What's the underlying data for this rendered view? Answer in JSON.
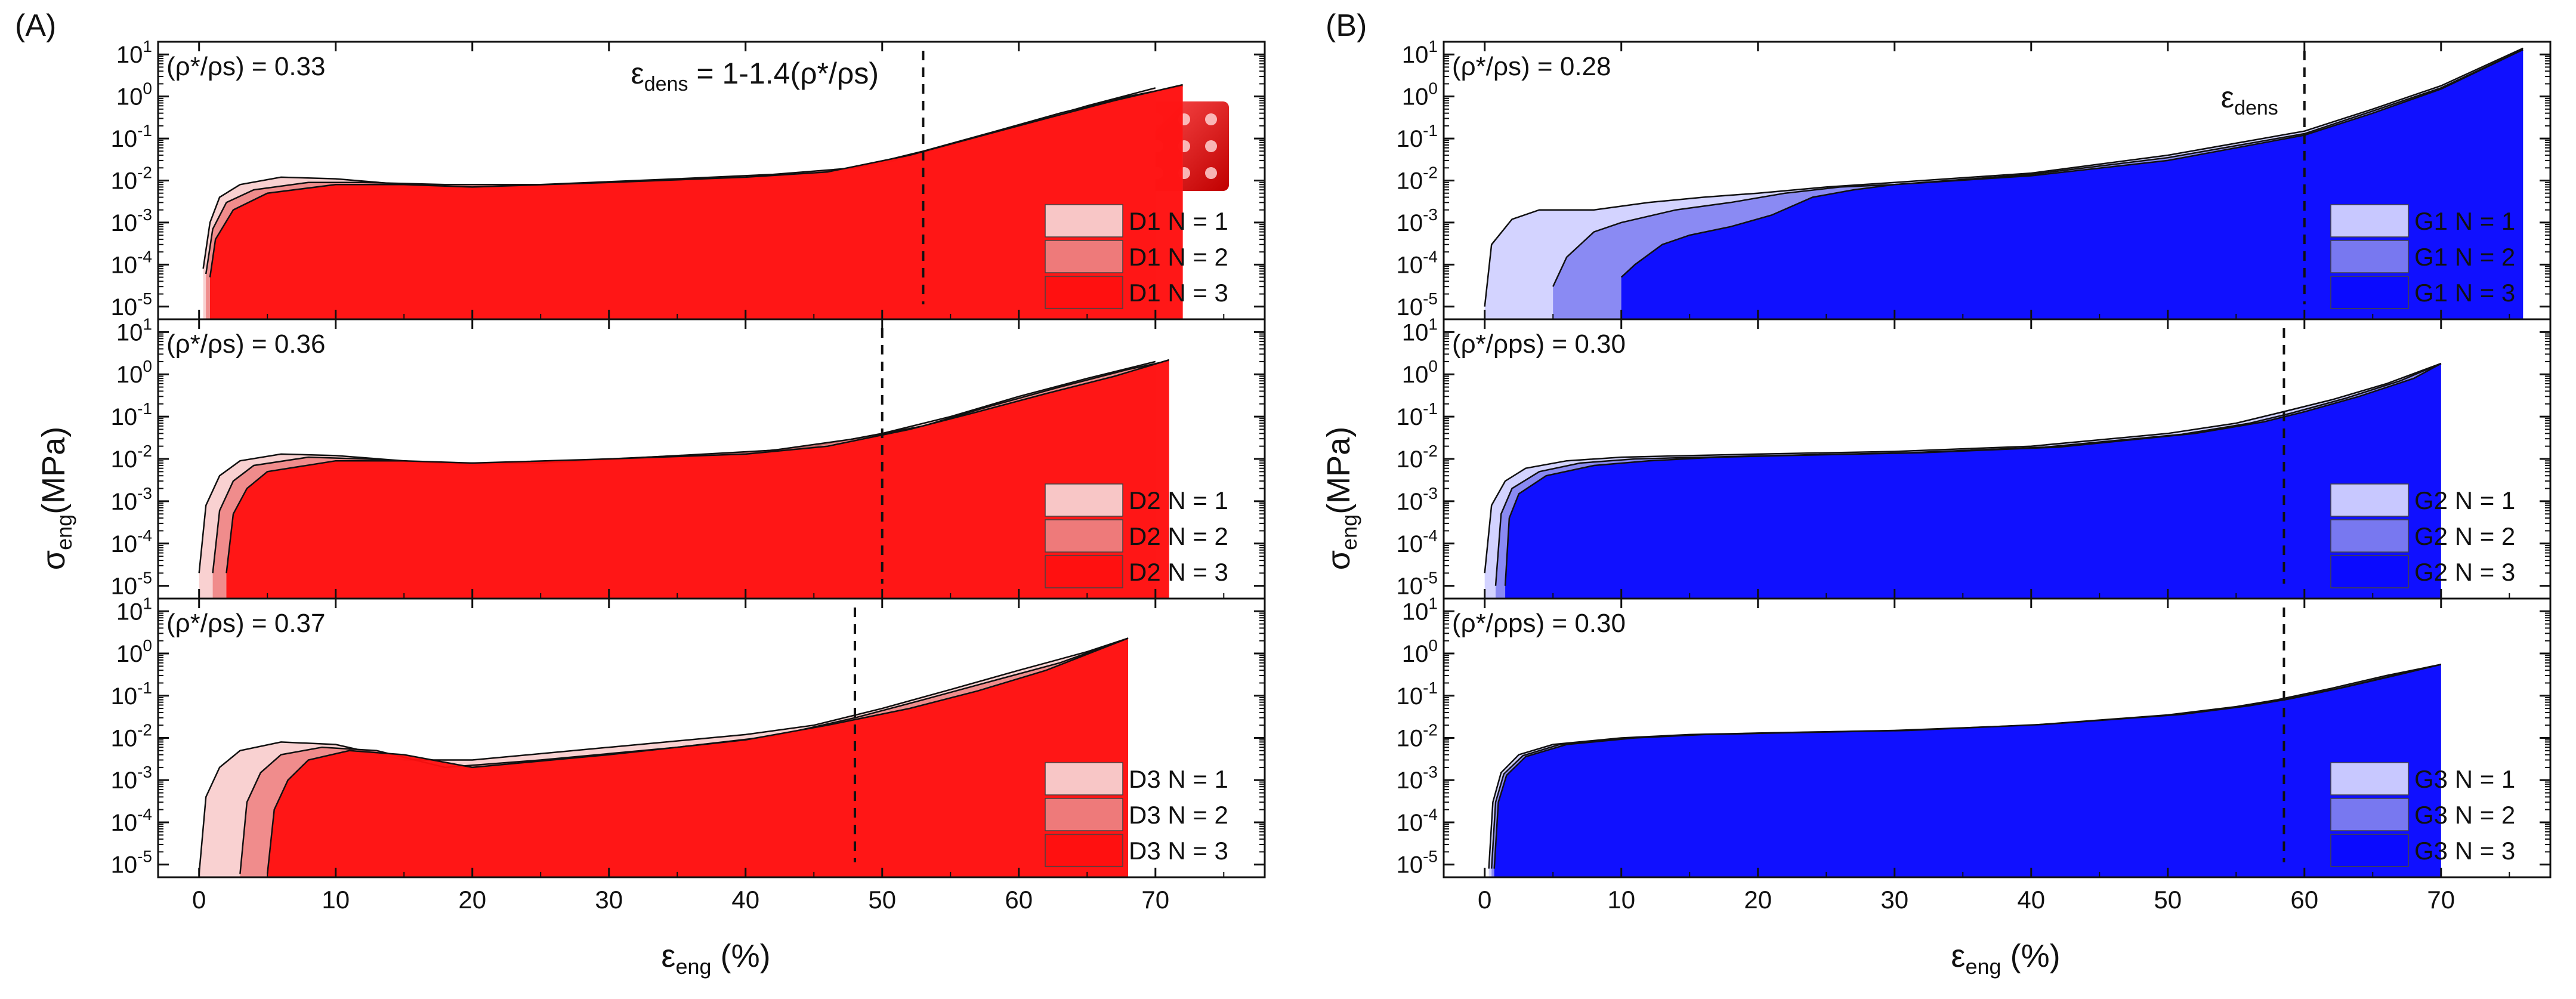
{
  "panel_labels": {
    "A": "(A)",
    "B": "(B)"
  },
  "axes": {
    "x_label_main": "ε",
    "x_label_sub": "eng",
    "x_label_unit": " (%)",
    "y_label_main": "σ",
    "y_label_sub": "eng",
    "y_label_unit": "(MPa)",
    "x_ticks": [
      "0",
      "10",
      "20",
      "30",
      "40",
      "50",
      "60",
      "70"
    ],
    "y_tick_exponents": [
      "-5",
      "-4",
      "-3",
      "-2",
      "-1",
      "0",
      "1"
    ]
  },
  "chart_data": [
    {
      "type": "area",
      "panel": "A",
      "density_label": "(ρ*/ρs) = 0.33",
      "annotation_main": "ε",
      "annotation_sub": "dens",
      "annotation_tail": " = 1-1.4(ρ*/ρs)",
      "densification_strain": 53,
      "y_scale": "log",
      "xlim": [
        -3,
        78
      ],
      "ylim": [
        5e-06,
        20
      ],
      "colors": [
        "#f8c6c6",
        "#ee7a7a",
        "#ff1010"
      ],
      "series": [
        {
          "name": "D1 N = 1",
          "x": [
            0.3,
            0.8,
            1.5,
            3,
            6,
            10,
            15,
            20,
            30,
            40,
            45,
            50,
            55,
            60,
            65,
            70
          ],
          "y": [
            8e-05,
            0.001,
            0.004,
            0.008,
            0.012,
            0.011,
            0.008,
            0.007,
            0.009,
            0.012,
            0.015,
            0.025,
            0.07,
            0.2,
            0.6,
            1.6
          ]
        },
        {
          "name": "D1 N = 2",
          "x": [
            0.5,
            1,
            2,
            4,
            8,
            12,
            18,
            25,
            35,
            42,
            48,
            53,
            58,
            63,
            68,
            72
          ],
          "y": [
            6e-05,
            0.0007,
            0.003,
            0.006,
            0.009,
            0.009,
            0.008,
            0.008,
            0.011,
            0.014,
            0.02,
            0.05,
            0.14,
            0.4,
            1.0,
            1.8
          ]
        },
        {
          "name": "D1 N = 3",
          "x": [
            0.8,
            1.2,
            2.5,
            5,
            10,
            15,
            20,
            30,
            40,
            46,
            52,
            57,
            62,
            67,
            72
          ],
          "y": [
            5e-05,
            0.0004,
            0.002,
            0.005,
            0.008,
            0.008,
            0.007,
            0.009,
            0.012,
            0.016,
            0.04,
            0.11,
            0.3,
            0.8,
            1.9
          ]
        }
      ]
    },
    {
      "type": "area",
      "panel": "A",
      "density_label": "(ρ*/ρs) = 0.36",
      "densification_strain": 50,
      "y_scale": "log",
      "xlim": [
        -3,
        78
      ],
      "ylim": [
        5e-06,
        20
      ],
      "colors": [
        "#f8c6c6",
        "#ee7a7a",
        "#ff1010"
      ],
      "series": [
        {
          "name": "D2 N = 1",
          "x": [
            0,
            0.5,
            1.5,
            3,
            6,
            10,
            15,
            20,
            30,
            40,
            45,
            50,
            55,
            60,
            65,
            70
          ],
          "y": [
            2e-05,
            0.0008,
            0.004,
            0.009,
            0.013,
            0.012,
            0.009,
            0.007,
            0.01,
            0.014,
            0.02,
            0.04,
            0.1,
            0.3,
            0.8,
            2.0
          ]
        },
        {
          "name": "D2 N = 2",
          "x": [
            1,
            1.5,
            2.5,
            4,
            8,
            12,
            18,
            25,
            35,
            42,
            48,
            53,
            58,
            63,
            68,
            71
          ],
          "y": [
            2e-05,
            0.0006,
            0.003,
            0.007,
            0.011,
            0.01,
            0.008,
            0.008,
            0.012,
            0.016,
            0.03,
            0.06,
            0.18,
            0.5,
            1.3,
            2.1
          ]
        },
        {
          "name": "D2 N = 3",
          "x": [
            2,
            2.5,
            3.5,
            5,
            10,
            15,
            20,
            30,
            40,
            46,
            52,
            57,
            62,
            67,
            71
          ],
          "y": [
            2e-05,
            0.0005,
            0.002,
            0.005,
            0.009,
            0.009,
            0.008,
            0.01,
            0.013,
            0.02,
            0.05,
            0.13,
            0.35,
            0.9,
            2.2
          ]
        }
      ]
    },
    {
      "type": "area",
      "panel": "A",
      "density_label": "(ρ*/ρs) = 0.37",
      "densification_strain": 48,
      "y_scale": "log",
      "xlim": [
        -3,
        78
      ],
      "ylim": [
        5e-06,
        20
      ],
      "colors": [
        "#f8c6c6",
        "#ee7a7a",
        "#ff1010"
      ],
      "series": [
        {
          "name": "D3 N = 1",
          "x": [
            0,
            0.5,
            1.5,
            3,
            6,
            10,
            15,
            20,
            30,
            40,
            45,
            50,
            55,
            60,
            65,
            68
          ],
          "y": [
            6e-06,
            0.0004,
            0.002,
            0.005,
            0.008,
            0.007,
            0.003,
            0.003,
            0.006,
            0.012,
            0.02,
            0.05,
            0.14,
            0.4,
            1.1,
            2.3
          ]
        },
        {
          "name": "D3 N = 2",
          "x": [
            3,
            3.5,
            4.5,
            6,
            9,
            13,
            18,
            25,
            35,
            42,
            48,
            53,
            58,
            63,
            68
          ],
          "y": [
            6e-06,
            0.0003,
            0.0015,
            0.004,
            0.006,
            0.005,
            0.002,
            0.003,
            0.006,
            0.011,
            0.03,
            0.08,
            0.22,
            0.6,
            2.3
          ]
        },
        {
          "name": "D3 N = 3",
          "x": [
            5,
            5.5,
            6.5,
            8,
            11,
            15,
            20,
            30,
            40,
            46,
            52,
            57,
            62,
            68
          ],
          "y": [
            6e-06,
            0.0002,
            0.001,
            0.003,
            0.005,
            0.004,
            0.002,
            0.004,
            0.009,
            0.02,
            0.05,
            0.13,
            0.4,
            2.3
          ]
        }
      ]
    },
    {
      "type": "area",
      "panel": "B",
      "density_label": "(ρ*/ρs) = 0.28",
      "annotation_main": "ε",
      "annotation_sub": "dens",
      "annotation_tail": "",
      "densification_strain": 60,
      "y_scale": "log",
      "xlim": [
        -3,
        78
      ],
      "ylim": [
        5e-06,
        20
      ],
      "colors": [
        "#c8c8ff",
        "#7878f0",
        "#0a0aff"
      ],
      "series": [
        {
          "name": "G1 N = 1",
          "x": [
            0,
            0.5,
            2,
            4,
            8,
            12,
            16,
            20,
            25,
            30,
            40,
            50,
            60,
            65,
            70,
            76
          ],
          "y": [
            1e-05,
            0.0003,
            0.0012,
            0.002,
            0.002,
            0.003,
            0.004,
            0.005,
            0.007,
            0.009,
            0.015,
            0.04,
            0.15,
            0.5,
            1.8,
            14
          ]
        },
        {
          "name": "G1 N = 2",
          "x": [
            5,
            6,
            8,
            10,
            14,
            18,
            22,
            26,
            30,
            40,
            50,
            60,
            65,
            70,
            76
          ],
          "y": [
            3e-05,
            0.00015,
            0.0006,
            0.001,
            0.002,
            0.003,
            0.005,
            0.007,
            0.008,
            0.014,
            0.035,
            0.13,
            0.45,
            1.6,
            13
          ]
        },
        {
          "name": "G1 N = 3",
          "x": [
            10,
            11,
            13,
            15,
            18,
            21,
            24,
            27,
            30,
            40,
            50,
            60,
            65,
            70,
            76
          ],
          "y": [
            5e-05,
            0.0001,
            0.0003,
            0.0005,
            0.0008,
            0.0015,
            0.004,
            0.006,
            0.008,
            0.013,
            0.03,
            0.12,
            0.4,
            1.5,
            13
          ]
        }
      ]
    },
    {
      "type": "area",
      "panel": "B",
      "density_label": "(ρ*/ρps) = 0.30",
      "densification_strain": 58.5,
      "y_scale": "log",
      "xlim": [
        -3,
        78
      ],
      "ylim": [
        5e-06,
        20
      ],
      "colors": [
        "#c8c8ff",
        "#7878f0",
        "#0a0aff"
      ],
      "series": [
        {
          "name": "G2 N = 1",
          "x": [
            0,
            0.5,
            1.5,
            3,
            6,
            10,
            15,
            20,
            30,
            40,
            50,
            55,
            58,
            62,
            66,
            70
          ],
          "y": [
            2e-05,
            0.0008,
            0.003,
            0.006,
            0.009,
            0.011,
            0.012,
            0.013,
            0.015,
            0.02,
            0.04,
            0.07,
            0.12,
            0.25,
            0.6,
            1.8
          ]
        },
        {
          "name": "G2 N = 2",
          "x": [
            0.8,
            1.2,
            2,
            4,
            7,
            11,
            16,
            21,
            31,
            41,
            51,
            56,
            59,
            63,
            67,
            70
          ],
          "y": [
            1e-05,
            0.0005,
            0.002,
            0.005,
            0.008,
            0.01,
            0.011,
            0.012,
            0.014,
            0.019,
            0.038,
            0.07,
            0.12,
            0.27,
            0.7,
            1.8
          ]
        },
        {
          "name": "G2 N = 3",
          "x": [
            1.5,
            1.8,
            2.5,
            4.5,
            8,
            12,
            17,
            22,
            32,
            42,
            52,
            57,
            60,
            64,
            68,
            70
          ],
          "y": [
            1e-05,
            0.0004,
            0.0015,
            0.004,
            0.007,
            0.009,
            0.011,
            0.012,
            0.014,
            0.019,
            0.04,
            0.075,
            0.13,
            0.3,
            0.8,
            1.8
          ]
        }
      ]
    },
    {
      "type": "area",
      "panel": "B",
      "density_label": "(ρ*/ρps) = 0.30",
      "densification_strain": 58.5,
      "y_scale": "log",
      "xlim": [
        -3,
        78
      ],
      "ylim": [
        5e-06,
        20
      ],
      "colors": [
        "#c8c8ff",
        "#7878f0",
        "#0a0aff"
      ],
      "series": [
        {
          "name": "G3 N = 1",
          "x": [
            0.3,
            0.6,
            1.2,
            2.5,
            5,
            10,
            15,
            20,
            30,
            40,
            50,
            55,
            58,
            62,
            66,
            70
          ],
          "y": [
            8e-06,
            0.0003,
            0.0015,
            0.004,
            0.007,
            0.01,
            0.012,
            0.013,
            0.015,
            0.02,
            0.035,
            0.055,
            0.08,
            0.15,
            0.3,
            0.55
          ]
        },
        {
          "name": "G3 N = 2",
          "x": [
            0.5,
            0.8,
            1.4,
            2.8,
            5.5,
            10.5,
            15.5,
            20.5,
            30.5,
            40.5,
            50.5,
            55.5,
            58.5,
            62.5,
            66.5,
            70
          ],
          "y": [
            8e-06,
            0.0003,
            0.0014,
            0.0038,
            0.007,
            0.01,
            0.012,
            0.013,
            0.015,
            0.02,
            0.035,
            0.056,
            0.08,
            0.15,
            0.3,
            0.55
          ]
        },
        {
          "name": "G3 N = 3",
          "x": [
            0.7,
            1,
            1.6,
            3,
            6,
            11,
            16,
            21,
            31,
            41,
            51,
            56,
            59,
            63,
            67,
            70
          ],
          "y": [
            8e-06,
            0.0003,
            0.0013,
            0.0036,
            0.007,
            0.01,
            0.012,
            0.013,
            0.015,
            0.021,
            0.036,
            0.058,
            0.085,
            0.16,
            0.32,
            0.55
          ]
        }
      ]
    }
  ]
}
